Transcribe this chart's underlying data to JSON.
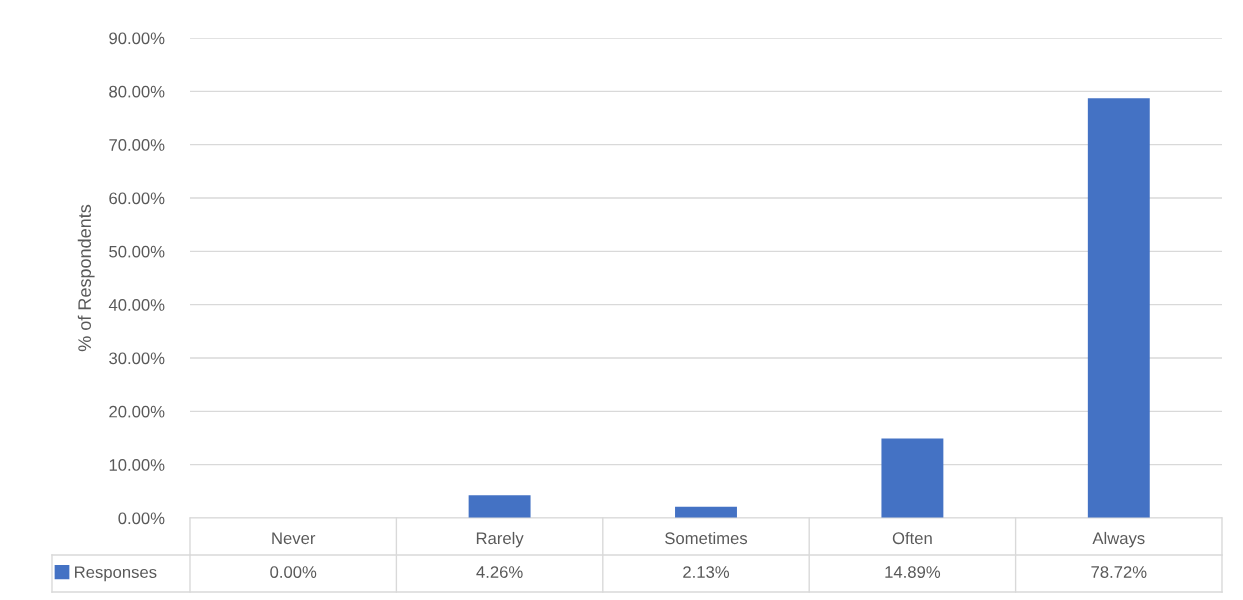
{
  "chart_data": {
    "type": "bar",
    "ylabel": "% of Respondents",
    "categories": [
      "Never",
      "Rarely",
      "Sometimes",
      "Often",
      "Always"
    ],
    "series": [
      {
        "name": "Responses",
        "color": "#4472c4",
        "values": [
          0.0,
          4.26,
          2.13,
          14.89,
          78.72
        ],
        "value_labels": [
          "0.00%",
          "4.26%",
          "2.13%",
          "14.89%",
          "78.72%"
        ]
      }
    ],
    "ylim": [
      0,
      90
    ],
    "yticks": [
      {
        "value": 0,
        "label": "0.00%"
      },
      {
        "value": 10,
        "label": "10.00%"
      },
      {
        "value": 20,
        "label": "20.00%"
      },
      {
        "value": 30,
        "label": "30.00%"
      },
      {
        "value": 40,
        "label": "40.00%"
      },
      {
        "value": 50,
        "label": "50.00%"
      },
      {
        "value": 60,
        "label": "60.00%"
      },
      {
        "value": 70,
        "label": "70.00%"
      },
      {
        "value": 80,
        "label": "80.00%"
      },
      {
        "value": 90,
        "label": "90.00%"
      }
    ],
    "grid": "y",
    "legend": "bottom"
  }
}
